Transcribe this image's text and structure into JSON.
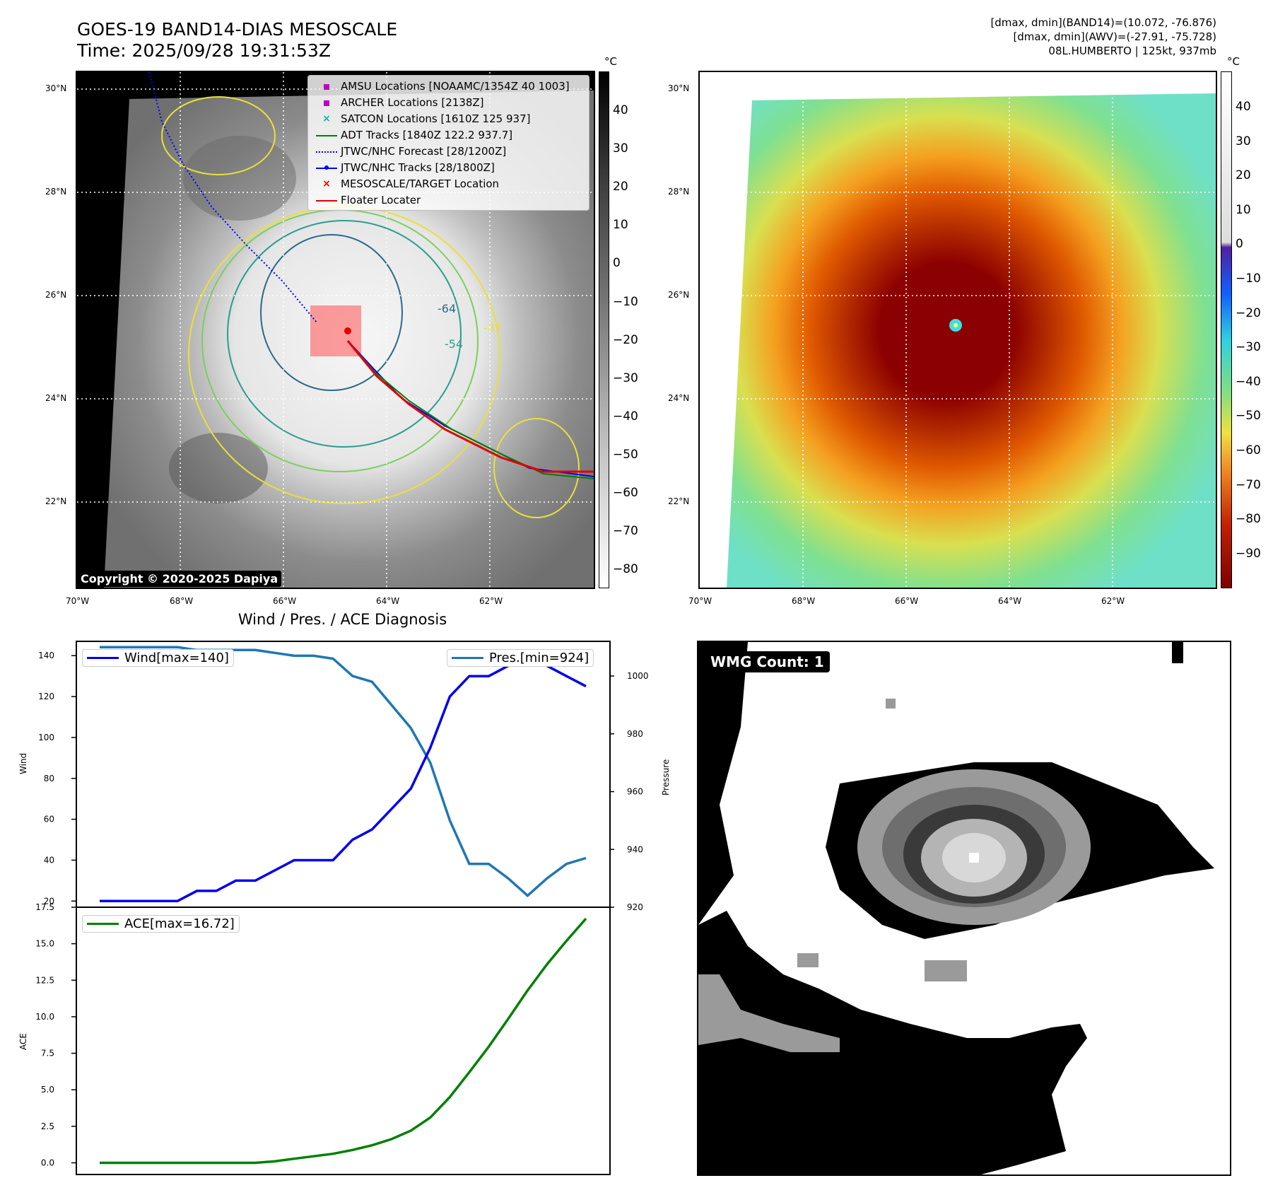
{
  "header": {
    "title_line1": "GOES-19 BAND14-DIAS MESOSCALE",
    "title_line2": "Time: 2025/09/28 19:31:53Z",
    "right_line1": "[dmax, dmin](BAND14)=(10.072, -76.876)",
    "right_line2": "[dmax, dmin](AWV)=(-27.91, -75.728)",
    "right_line3": "08L.HUMBERTO | 125kt, 937mb"
  },
  "map_axes": {
    "lat_ticks": [
      "30°N",
      "28°N",
      "26°N",
      "24°N",
      "22°N"
    ],
    "lon_ticks": [
      "70°W",
      "68°W",
      "66°W",
      "64°W",
      "62°W"
    ]
  },
  "left_colorbar": {
    "unit": "°C",
    "ticks": [
      "40",
      "30",
      "20",
      "10",
      "0",
      "−10",
      "−20",
      "−30",
      "−40",
      "−50",
      "−60",
      "−70",
      "−80"
    ]
  },
  "right_colorbar": {
    "unit": "°C",
    "ticks": [
      "40",
      "30",
      "20",
      "10",
      "0",
      "−10",
      "−20",
      "−30",
      "−40",
      "−50",
      "−60",
      "−70",
      "−80",
      "−90"
    ]
  },
  "legend": [
    {
      "label": "AMSU Locations [NOAAMC/1354Z 40 1003]",
      "symbol": "square",
      "color": "#c000c0"
    },
    {
      "label": "ARCHER Locations [2138Z]",
      "symbol": "square",
      "color": "#c000c0"
    },
    {
      "label": "SATCON Locations [1610Z 125 937]",
      "symbol": "x",
      "color": "#00b8b8"
    },
    {
      "label": "ADT Tracks [1840Z 122.2 937.7]",
      "symbol": "line",
      "color": "#008000"
    },
    {
      "label": "JTWC/NHC Forecast [28/1200Z]",
      "symbol": "dotted",
      "color": "#0000ff"
    },
    {
      "label": "JTWC/NHC Tracks [28/1800Z]",
      "symbol": "dotline",
      "color": "#0000ff"
    },
    {
      "label": "MESOSCALE/TARGET Location",
      "symbol": "x",
      "color": "#e00000"
    },
    {
      "label": "Floater Locater",
      "symbol": "line",
      "color": "#e00000"
    }
  ],
  "contour_labels": [
    "-37",
    "-54",
    "-64"
  ],
  "copyright": "Copyright © 2020-2025 Dapiya",
  "diagnosis": {
    "title": "Wind / Pres. / ACE Diagnosis",
    "wind_label": "Wind",
    "pres_label": "Pressure",
    "ace_label": "ACE",
    "wind_legend": "Wind[max=140]",
    "pres_legend": "Pres.[min=924]",
    "ace_legend": "ACE[max=16.72]",
    "wind_ticks": [
      "140",
      "120",
      "100",
      "80",
      "60",
      "40",
      "20"
    ],
    "pres_ticks": [
      "1000",
      "980",
      "960",
      "940",
      "920"
    ],
    "ace_ticks": [
      "17.5",
      "15.0",
      "12.5",
      "10.0",
      "7.5",
      "5.0",
      "2.5",
      "0.0"
    ]
  },
  "wmg": {
    "label": "WMG Count: 1"
  },
  "chart_data": [
    {
      "type": "line",
      "title": "Wind / Pres. / ACE Diagnosis",
      "xlabel": "",
      "ylabel": "Wind",
      "ylim": [
        17,
        147
      ],
      "x": [
        0,
        1,
        2,
        3,
        4,
        5,
        6,
        7,
        8,
        9,
        10,
        11,
        12,
        13,
        14,
        15,
        16,
        17,
        18,
        19,
        20,
        21,
        22,
        23,
        24,
        25
      ],
      "series": [
        {
          "name": "Wind[max=140]",
          "color": "#0000ee",
          "values": [
            20,
            20,
            20,
            20,
            20,
            25,
            25,
            30,
            30,
            35,
            40,
            40,
            40,
            50,
            55,
            65,
            75,
            95,
            120,
            130,
            130,
            135,
            140,
            135,
            130,
            125
          ]
        }
      ]
    },
    {
      "type": "line",
      "xlabel": "",
      "ylabel": "Pressure",
      "ylim": [
        920,
        1012
      ],
      "x": [
        0,
        1,
        2,
        3,
        4,
        5,
        6,
        7,
        8,
        9,
        10,
        11,
        12,
        13,
        14,
        15,
        16,
        17,
        18,
        19,
        20,
        21,
        22,
        23,
        24,
        25
      ],
      "series": [
        {
          "name": "Pres.[min=924]",
          "color": "#1f77b4",
          "values": [
            1010,
            1010,
            1010,
            1010,
            1010,
            1009,
            1009,
            1009,
            1009,
            1008,
            1007,
            1007,
            1006,
            1000,
            998,
            990,
            982,
            970,
            950,
            935,
            935,
            930,
            924,
            930,
            935,
            937
          ]
        }
      ]
    },
    {
      "type": "line",
      "xlabel": "",
      "ylabel": "ACE",
      "ylim": [
        -0.8,
        17.5
      ],
      "x": [
        0,
        1,
        2,
        3,
        4,
        5,
        6,
        7,
        8,
        9,
        10,
        11,
        12,
        13,
        14,
        15,
        16,
        17,
        18,
        19,
        20,
        21,
        22,
        23,
        24,
        25
      ],
      "series": [
        {
          "name": "ACE[max=16.72]",
          "color": "#008000",
          "values": [
            0,
            0,
            0,
            0,
            0,
            0,
            0,
            0,
            0,
            0.1,
            0.28,
            0.45,
            0.62,
            0.88,
            1.2,
            1.62,
            2.2,
            3.1,
            4.5,
            6.2,
            7.95,
            9.85,
            11.8,
            13.6,
            15.2,
            16.72
          ]
        }
      ]
    }
  ]
}
